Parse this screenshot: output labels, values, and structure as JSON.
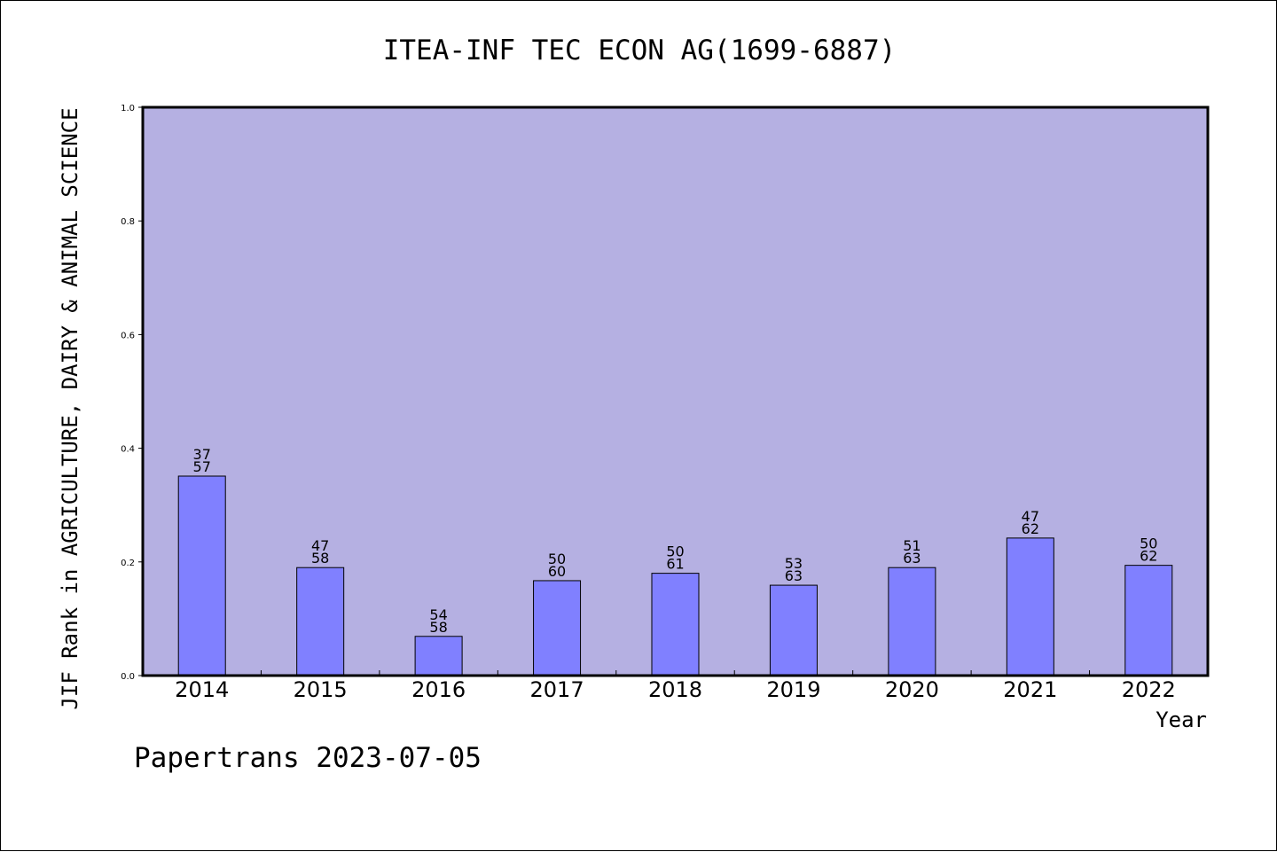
{
  "chart_data": {
    "type": "bar",
    "title": "ITEA-INF TEC ECON AG(1699-6887)",
    "ylabel": "JIF Rank in AGRICULTURE, DAIRY & ANIMAL SCIENCE",
    "xlabel": "Year",
    "categories": [
      "2014",
      "2015",
      "2016",
      "2017",
      "2018",
      "2019",
      "2020",
      "2021",
      "2022"
    ],
    "values": [
      0.351,
      0.19,
      0.069,
      0.167,
      0.18,
      0.159,
      0.19,
      0.242,
      0.194
    ],
    "bar_labels": [
      [
        "37",
        "57"
      ],
      [
        "47",
        "58"
      ],
      [
        "54",
        "58"
      ],
      [
        "50",
        "60"
      ],
      [
        "50",
        "61"
      ],
      [
        "53",
        "63"
      ],
      [
        "51",
        "63"
      ],
      [
        "47",
        "62"
      ],
      [
        "50",
        "62"
      ]
    ],
    "ylim": [
      0,
      1.0
    ],
    "yticks": [
      "0.0",
      "0.2",
      "0.4",
      "0.6",
      "0.8",
      "1.0"
    ],
    "grid": false,
    "colors": {
      "plot_background": "#b5b0e2",
      "bar_fill": "#8080ff",
      "bar_stroke": "#000000"
    }
  },
  "footer": "Papertrans 2023-07-05"
}
